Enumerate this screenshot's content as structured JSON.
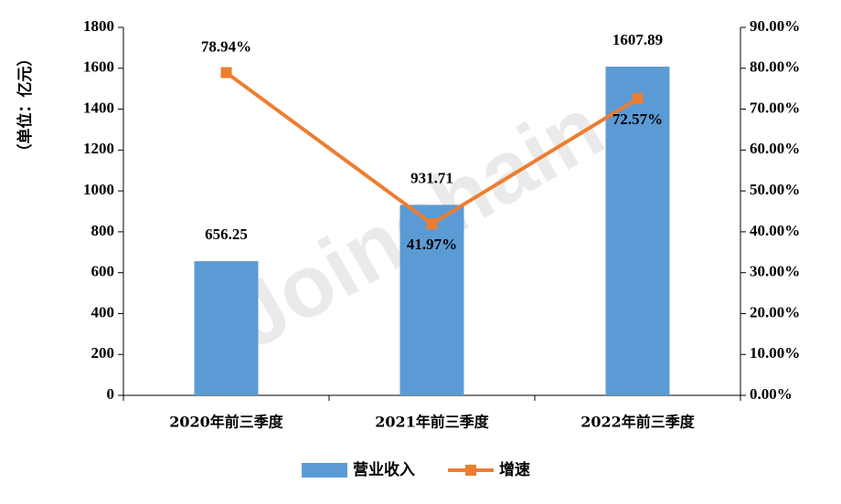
{
  "chart_data": {
    "type": "bar_line",
    "y_label": "（单位：亿元）",
    "watermark": "Joinchain",
    "trademark": "®",
    "categories": [
      "2020年前三季度",
      "2021年前三季度",
      "2022年前三季度"
    ],
    "series": [
      {
        "name": "营业收入",
        "type": "bar",
        "color": "#5b9bd5",
        "values": [
          656.25,
          931.71,
          1607.89
        ]
      },
      {
        "name": "增速",
        "type": "line",
        "axis": "y2",
        "color": "#ed7d31",
        "values": [
          78.94,
          41.97,
          72.57
        ],
        "value_labels": [
          "78.94%",
          "41.97%",
          "72.57%"
        ]
      }
    ],
    "ylim": [
      0,
      1800
    ],
    "yticks": [
      0,
      200,
      400,
      600,
      800,
      1000,
      1200,
      1400,
      1600,
      1800
    ],
    "y2lim": [
      0,
      90
    ],
    "y2ticks": [
      {
        "value": 0,
        "label": "0.00%"
      },
      {
        "value": 10,
        "label": "10.00%"
      },
      {
        "value": 20,
        "label": "20.00%"
      },
      {
        "value": 30,
        "label": "30.00%"
      },
      {
        "value": 40,
        "label": "40.00%"
      },
      {
        "value": 50,
        "label": "50.00%"
      },
      {
        "value": 60,
        "label": "60.00%"
      },
      {
        "value": 70,
        "label": "70.00%"
      },
      {
        "value": 80,
        "label": "80.00%"
      },
      {
        "value": 90,
        "label": "90.00%"
      }
    ],
    "legend": "bottom"
  }
}
